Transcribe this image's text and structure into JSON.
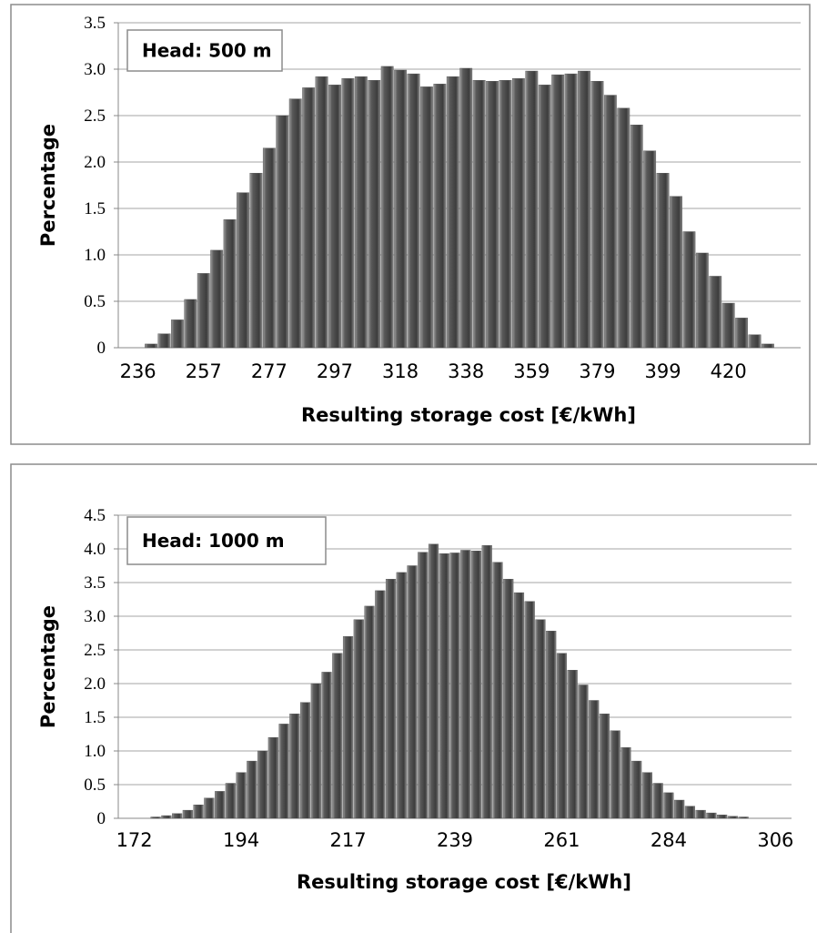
{
  "chart_data": [
    {
      "type": "bar",
      "annotation": "Head: 500 m",
      "xlabel": "Resulting storage cost [€/kWh]",
      "ylabel": "Percentage",
      "categories": [
        null,
        "236",
        null,
        null,
        null,
        null,
        "257",
        null,
        null,
        null,
        null,
        "277",
        null,
        null,
        null,
        null,
        "297",
        null,
        null,
        null,
        null,
        "318",
        null,
        null,
        null,
        null,
        "338",
        null,
        null,
        null,
        null,
        "359",
        null,
        null,
        null,
        null,
        "379",
        null,
        null,
        null,
        null,
        "399",
        null,
        null,
        null,
        null,
        "420",
        null,
        null,
        null,
        null,
        null
      ],
      "values": [
        0,
        0,
        0.04,
        0.15,
        0.3,
        0.52,
        0.8,
        1.05,
        1.38,
        1.67,
        1.88,
        2.15,
        2.5,
        2.68,
        2.8,
        2.92,
        2.83,
        2.9,
        2.92,
        2.88,
        3.03,
        2.99,
        2.95,
        2.81,
        2.84,
        2.92,
        3.01,
        2.88,
        2.87,
        2.88,
        2.9,
        2.98,
        2.83,
        2.94,
        2.95,
        2.98,
        2.87,
        2.72,
        2.58,
        2.4,
        2.12,
        1.88,
        1.63,
        1.25,
        1.02,
        0.77,
        0.48,
        0.32,
        0.14,
        0.04,
        0,
        0
      ],
      "color": "#4d4d4d",
      "ylim": [
        0,
        3.5
      ],
      "yticks": [
        0,
        0.5,
        {
          "value": 1,
          "label": "1.0"
        },
        1.5,
        {
          "value": 2,
          "label": "2.0"
        },
        2.5,
        {
          "value": 3,
          "label": "3.0"
        },
        3.5
      ],
      "grid": true
    },
    {
      "type": "bar",
      "annotation": "Head: 1000 m",
      "xlabel": "Resulting storage cost [€/kWh]",
      "ylabel": "Percentage",
      "categories": [
        null,
        "172",
        null,
        null,
        null,
        null,
        null,
        null,
        null,
        null,
        null,
        "194",
        null,
        null,
        null,
        null,
        null,
        null,
        null,
        null,
        null,
        "217",
        null,
        null,
        null,
        null,
        null,
        null,
        null,
        null,
        null,
        "239",
        null,
        null,
        null,
        null,
        null,
        null,
        null,
        null,
        null,
        "261",
        null,
        null,
        null,
        null,
        null,
        null,
        null,
        null,
        null,
        "284",
        null,
        null,
        null,
        null,
        null,
        null,
        null,
        null,
        null,
        "306",
        null
      ],
      "values": [
        0,
        0,
        0,
        0.02,
        0.04,
        0.07,
        0.12,
        0.2,
        0.3,
        0.4,
        0.52,
        0.68,
        0.85,
        1.0,
        1.2,
        1.4,
        1.55,
        1.72,
        2.0,
        2.17,
        2.45,
        2.7,
        2.95,
        3.15,
        3.38,
        3.55,
        3.65,
        3.75,
        3.95,
        4.07,
        3.93,
        3.94,
        3.98,
        3.97,
        4.05,
        3.8,
        3.55,
        3.35,
        3.22,
        2.95,
        2.78,
        2.45,
        2.2,
        1.98,
        1.75,
        1.55,
        1.3,
        1.05,
        0.85,
        0.68,
        0.52,
        0.38,
        0.27,
        0.18,
        0.12,
        0.08,
        0.05,
        0.03,
        0.02,
        0,
        0,
        0,
        0
      ],
      "color": "#4d4d4d",
      "ylim": [
        0,
        4.5
      ],
      "yticks": [
        0,
        0.5,
        {
          "value": 1,
          "label": "1.0"
        },
        1.5,
        {
          "value": 2,
          "label": "2.0"
        },
        2.5,
        {
          "value": 3,
          "label": "3.0"
        },
        3.5,
        {
          "value": 4,
          "label": "4.0"
        },
        4.5
      ],
      "grid": true
    }
  ]
}
